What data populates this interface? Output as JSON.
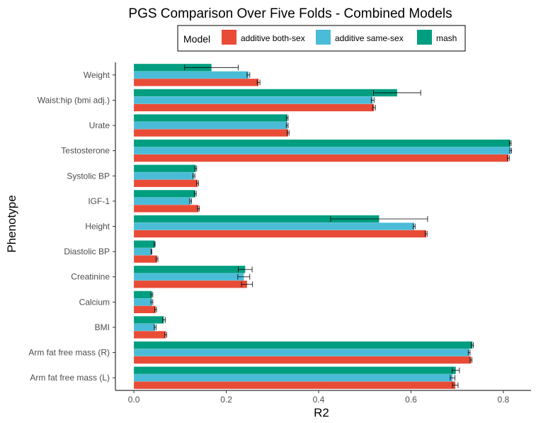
{
  "chart_data": {
    "type": "bar",
    "orientation": "horizontal",
    "title": "PGS Comparison Over Five Folds - Combined Models",
    "xlabel": "R2",
    "ylabel": "Phenotype",
    "xlim": [
      -0.04,
      0.86
    ],
    "xticks": [
      "0.0",
      "0.2",
      "0.4",
      "0.6",
      "0.8"
    ],
    "grid": false,
    "legend": {
      "title": "Model",
      "position": "top"
    },
    "categories": [
      "Weight",
      "Waist:hip (bmi adj.)",
      "Urate",
      "Testosterone",
      "Systolic BP",
      "IGF-1",
      "Height",
      "Diastolic BP",
      "Creatinine",
      "Calcium",
      "BMI",
      "Arm fat free mass (R)",
      "Arm fat free mass (L)"
    ],
    "series": [
      {
        "name": "mash",
        "color": "#009E80",
        "values": [
          0.168,
          0.57,
          0.332,
          0.815,
          0.134,
          0.133,
          0.531,
          0.045,
          0.241,
          0.039,
          0.065,
          0.733,
          0.697
        ],
        "err": [
          0.058,
          0.051,
          0.002,
          0.002,
          0.002,
          0.002,
          0.105,
          0.001,
          0.015,
          0.002,
          0.003,
          0.002,
          0.008
        ]
      },
      {
        "name": "additive same-sex",
        "color": "#4BBCD8",
        "values": [
          0.248,
          0.517,
          0.332,
          0.816,
          0.13,
          0.123,
          0.607,
          0.038,
          0.238,
          0.039,
          0.046,
          0.726,
          0.69
        ],
        "err": [
          0.003,
          0.003,
          0.002,
          0.002,
          0.002,
          0.002,
          0.002,
          0.001,
          0.013,
          0.002,
          0.002,
          0.002,
          0.005
        ]
      },
      {
        "name": "additive both-sex",
        "color": "#E84C37",
        "values": [
          0.27,
          0.52,
          0.334,
          0.811,
          0.138,
          0.14,
          0.633,
          0.05,
          0.245,
          0.047,
          0.069,
          0.73,
          0.696
        ],
        "err": [
          0.003,
          0.003,
          0.002,
          0.002,
          0.002,
          0.002,
          0.002,
          0.002,
          0.012,
          0.002,
          0.002,
          0.002,
          0.006
        ]
      }
    ]
  }
}
